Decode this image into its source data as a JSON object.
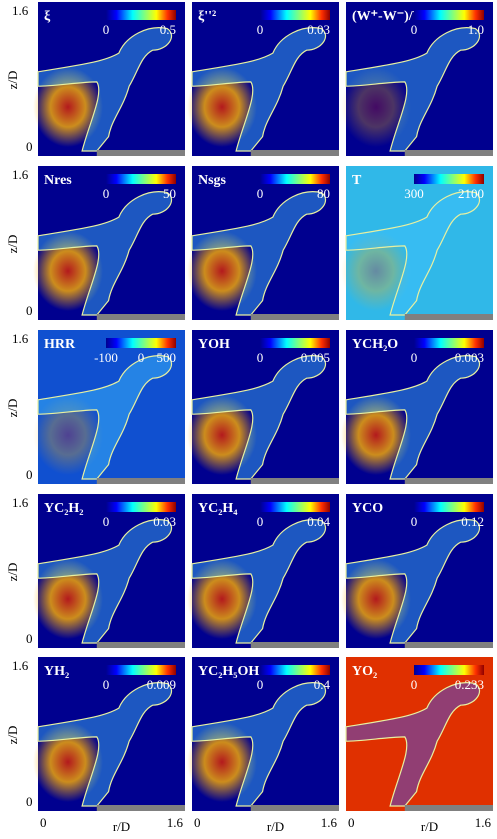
{
  "axes": {
    "z_label": "z/D",
    "z_top": "1.6",
    "z_bottom": "0",
    "r_label": "r/D",
    "r_left": "0",
    "r_right": "1.6"
  },
  "panels": [
    {
      "label": "ξ",
      "ticks": [
        "0",
        "0.5"
      ]
    },
    {
      "label": "ξ''²",
      "ticks": [
        "0",
        "0.03"
      ]
    },
    {
      "label": "(W⁺-W⁻)/W⁺",
      "ticks": [
        "0",
        "1.0"
      ]
    },
    {
      "label": "Nres",
      "ticks": [
        "0",
        "50"
      ]
    },
    {
      "label": "Nsgs",
      "ticks": [
        "0",
        "80"
      ]
    },
    {
      "label": "T",
      "ticks": [
        "300",
        "2100"
      ]
    },
    {
      "label": "HRR",
      "ticks": [
        "-100",
        "0",
        "500"
      ]
    },
    {
      "label": "YOH",
      "ticks": [
        "0",
        "0.005"
      ]
    },
    {
      "label": "YCH₂O",
      "ticks": [
        "0",
        "0.003"
      ]
    },
    {
      "label": "YC₂H₂",
      "ticks": [
        "0",
        "0.03"
      ]
    },
    {
      "label": "YC₂H₄",
      "ticks": [
        "0",
        "0.04"
      ]
    },
    {
      "label": "YCO",
      "ticks": [
        "0",
        "0.12"
      ]
    },
    {
      "label": "YH₂",
      "ticks": [
        "0",
        "0.009"
      ]
    },
    {
      "label": "YC₂H₅OH",
      "ticks": [
        "0",
        "0.4"
      ]
    },
    {
      "label": "YO₂",
      "ticks": [
        "0",
        "0.233"
      ]
    }
  ]
}
